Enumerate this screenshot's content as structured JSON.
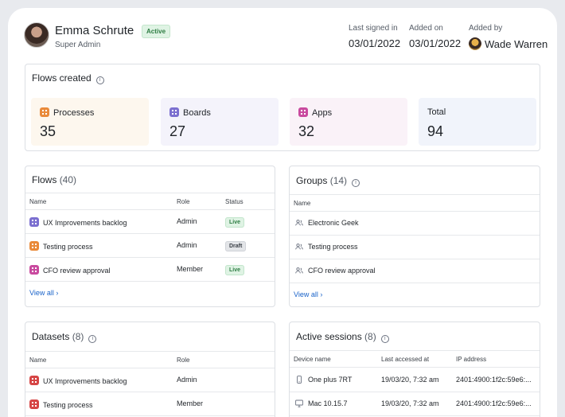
{
  "user": {
    "name": "Emma Schrute",
    "status": "Active",
    "role": "Super Admin"
  },
  "meta": {
    "last_signed_label": "Last signed in",
    "last_signed_value": "03/01/2022",
    "added_on_label": "Added on",
    "added_on_value": "03/01/2022",
    "added_by_label": "Added by",
    "added_by_value": "Wade Warren"
  },
  "flows_created": {
    "title": "Flows created",
    "stats": [
      {
        "label": "Processes",
        "value": "35",
        "color": "#e98a3a"
      },
      {
        "label": "Boards",
        "value": "27",
        "color": "#7b6fd0"
      },
      {
        "label": "Apps",
        "value": "32",
        "color": "#c94a9f"
      },
      {
        "label": "Total",
        "value": "94"
      }
    ]
  },
  "flows": {
    "title": "Flows",
    "count": "(40)",
    "headers": {
      "name": "Name",
      "role": "Role",
      "status": "Status"
    },
    "rows": [
      {
        "name": "UX Improvements backlog",
        "role": "Admin",
        "status": "Live",
        "icon": "boards-icon"
      },
      {
        "name": "Testing process",
        "role": "Admin",
        "status": "Draft",
        "icon": "process-icon"
      },
      {
        "name": "CFO review approval",
        "role": "Member",
        "status": "Live",
        "icon": "apps-icon"
      }
    ],
    "view_all": "View all"
  },
  "groups": {
    "title": "Groups",
    "count": "(14)",
    "headers": {
      "name": "Name"
    },
    "rows": [
      {
        "name": "Electronic Geek"
      },
      {
        "name": "Testing process"
      },
      {
        "name": "CFO review approval"
      }
    ],
    "view_all": "View all"
  },
  "datasets": {
    "title": "Datasets",
    "count": "(8)",
    "headers": {
      "name": "Name",
      "role": "Role"
    },
    "rows": [
      {
        "name": "UX Improvements backlog",
        "role": "Admin"
      },
      {
        "name": "Testing process",
        "role": "Member"
      }
    ]
  },
  "sessions": {
    "title": "Active sessions",
    "count": "(8)",
    "headers": {
      "device": "Device name",
      "accessed": "Last accessed at",
      "ip": "IP address"
    },
    "rows": [
      {
        "device": "One plus 7RT",
        "accessed": "19/03/20, 7:32 am",
        "ip": "2401:4900:1f2c:59e6:...",
        "icon": "phone-icon"
      },
      {
        "device": "Mac 10.15.7",
        "accessed": "19/03/20, 7:32 am",
        "ip": "2401:4900:1f2c:59e6:...",
        "icon": "monitor-icon"
      }
    ]
  }
}
